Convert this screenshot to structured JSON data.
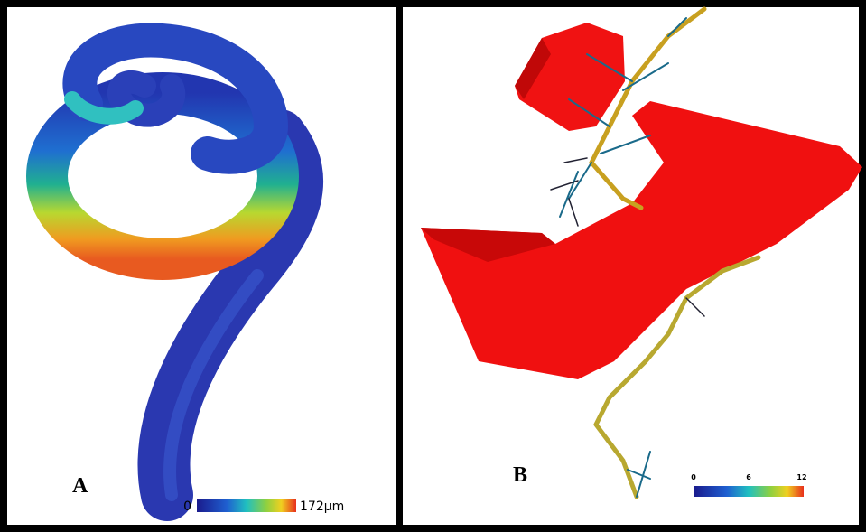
{
  "panels": [
    {
      "label": "A",
      "scale": {
        "labels": [
          "0",
          "172µm"
        ]
      }
    },
    {
      "label": "B",
      "scale": {
        "labels": [
          "0",
          "6",
          "12"
        ]
      }
    }
  ]
}
